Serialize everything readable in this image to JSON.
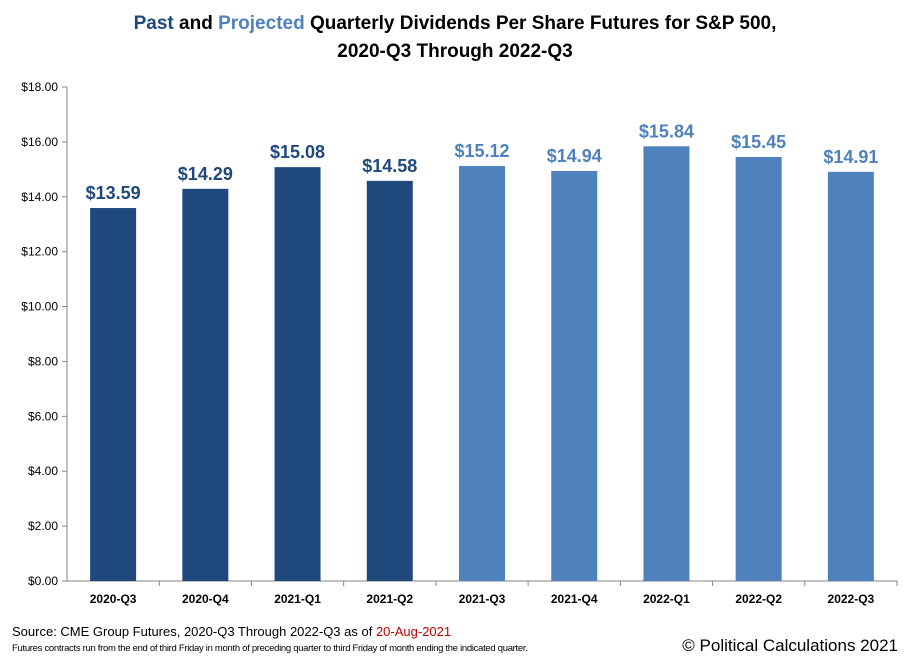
{
  "chart_data": {
    "type": "bar",
    "title_parts": {
      "past": "Past",
      "and": " and ",
      "projected": "Projected",
      "rest": " Quarterly Dividends Per Share Futures for S&P 500,",
      "line2": "2020-Q3 Through 2022-Q3"
    },
    "categories": [
      "2020-Q3",
      "2020-Q4",
      "2021-Q1",
      "2021-Q2",
      "2021-Q3",
      "2021-Q4",
      "2022-Q1",
      "2022-Q2",
      "2022-Q3"
    ],
    "values": [
      13.59,
      14.29,
      15.08,
      14.58,
      15.12,
      14.94,
      15.84,
      15.45,
      14.91
    ],
    "data_labels": [
      "$13.59",
      "$14.29",
      "$15.08",
      "$14.58",
      "$15.12",
      "$14.94",
      "$15.84",
      "$15.45",
      "$14.91"
    ],
    "kind": [
      "past",
      "past",
      "past",
      "past",
      "projected",
      "projected",
      "projected",
      "projected",
      "projected"
    ],
    "ylim": [
      0,
      18
    ],
    "yticks": [
      0,
      2,
      4,
      6,
      8,
      10,
      12,
      14,
      16,
      18
    ],
    "ytick_labels": [
      "$0.00",
      "$2.00",
      "$4.00",
      "$6.00",
      "$8.00",
      "$10.00",
      "$12.00",
      "$14.00",
      "$16.00",
      "$18.00"
    ],
    "grid": false,
    "colors": {
      "past": "#1f497d",
      "projected": "#4f81bd"
    }
  },
  "footer": {
    "source_prefix": "Source:  CME Group Futures, 2020-Q3 Through 2022-Q3 as of ",
    "source_date": "20-Aug-2021",
    "note": "Futures contracts run from the end of third Friday in month of preceding quarter to third Friday of month ending the indicated quarter.",
    "copyright": "© Political Calculations 2021"
  }
}
